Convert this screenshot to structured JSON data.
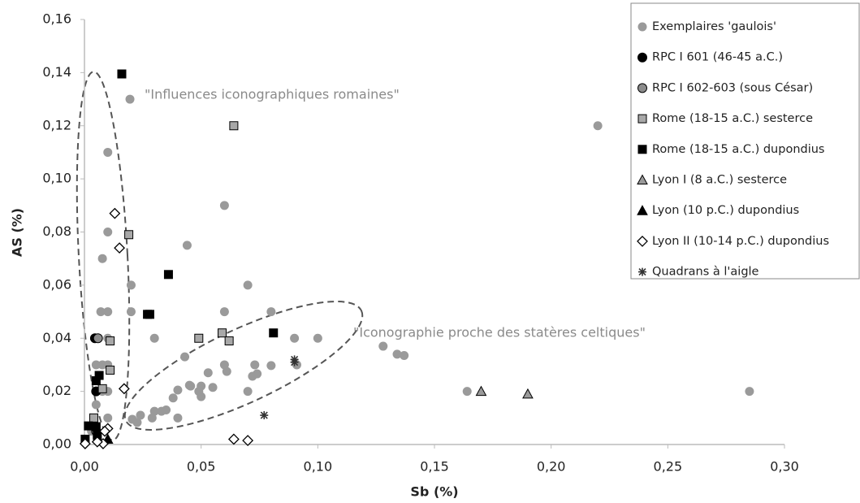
{
  "chart_data": {
    "type": "scatter",
    "x_label": "Sb (%)",
    "y_label": "AS (%)",
    "xlim": [
      0,
      0.3
    ],
    "ylim": [
      0,
      0.16
    ],
    "xticks": [
      {
        "value": 0,
        "label": "0,00"
      },
      {
        "value": 0.05,
        "label": "0,05"
      },
      {
        "value": 0.1,
        "label": "0,10"
      },
      {
        "value": 0.15,
        "label": "0,15"
      },
      {
        "value": 0.2,
        "label": "0,20"
      },
      {
        "value": 0.25,
        "label": "0,25"
      },
      {
        "value": 0.3,
        "label": "0,30"
      }
    ],
    "yticks": [
      {
        "value": 0,
        "label": "0,00"
      },
      {
        "value": 0.02,
        "label": "0,02"
      },
      {
        "value": 0.04,
        "label": "0,04"
      },
      {
        "value": 0.06,
        "label": "0,06"
      },
      {
        "value": 0.08,
        "label": "0,08"
      },
      {
        "value": 0.1,
        "label": "0,10"
      },
      {
        "value": 0.12,
        "label": "0,12"
      },
      {
        "value": 0.14,
        "label": "0,14"
      },
      {
        "value": 0.16,
        "label": "0,16"
      }
    ],
    "grid": false,
    "legend": "right",
    "annotations": [
      "\"Influences iconographiques romaines\"",
      "\"Iconographie proche des statères celtiques\""
    ],
    "series": [
      {
        "name": "Exemplaires 'gaulois'",
        "marker": "circle",
        "color": "#9a9a9a",
        "stroke": "none",
        "x": [
          0.0195,
          0.01,
          0.01,
          0.0077,
          0.06,
          0.044,
          0.02,
          0.01,
          0.007,
          0.02,
          0.07,
          0.06,
          0.08,
          0.03,
          0.09,
          0.1,
          0.128,
          0.134,
          0.137,
          0.22,
          0.164,
          0.285,
          0.043,
          0.053,
          0.06,
          0.061,
          0.073,
          0.072,
          0.074,
          0.08,
          0.091,
          0.05,
          0.049,
          0.05,
          0.055,
          0.045,
          0.0455,
          0.04,
          0.038,
          0.03,
          0.029,
          0.033,
          0.035,
          0.024,
          0.0205,
          0.0226,
          0.04,
          0.07,
          0.005,
          0.0077,
          0.01,
          0.01,
          0.01,
          0.0077,
          0.005,
          0.01,
          0.005,
          0.003,
          0.0055
        ],
        "values": [
          0.13,
          0.11,
          0.08,
          0.07,
          0.09,
          0.075,
          0.06,
          0.05,
          0.05,
          0.05,
          0.06,
          0.05,
          0.05,
          0.04,
          0.04,
          0.04,
          0.037,
          0.034,
          0.0335,
          0.12,
          0.02,
          0.02,
          0.033,
          0.027,
          0.03,
          0.0275,
          0.03,
          0.0257,
          0.0266,
          0.0297,
          0.03,
          0.022,
          0.02,
          0.018,
          0.0215,
          0.0223,
          0.022,
          0.0205,
          0.0175,
          0.0125,
          0.01,
          0.0125,
          0.013,
          0.011,
          0.0095,
          0.0083,
          0.01,
          0.02,
          0.03,
          0.03,
          0.03,
          0.02,
          0.01,
          0.02,
          0.015,
          0.04,
          0.04,
          0.005,
          0.003
        ]
      },
      {
        "name": "RPC I 601 (46-45 a.C.)",
        "marker": "circle",
        "color": "#000000",
        "stroke": "#000000",
        "x": [
          0.005,
          0.0045
        ],
        "values": [
          0.02,
          0.04
        ]
      },
      {
        "name": "RPC I 602-603 (sous César)",
        "marker": "circle",
        "color": "#8c8c8c",
        "stroke": "#000000",
        "x": [
          0.0058,
          0.005
        ],
        "values": [
          0.04,
          0.005
        ]
      },
      {
        "name": "Rome (18-15 a.C.) sesterce",
        "marker": "square",
        "color": "#a8a8a8",
        "stroke": "#000000",
        "x": [
          0.064,
          0.019,
          0.049,
          0.059,
          0.062,
          0.011,
          0.011,
          0.0077,
          0.004
        ],
        "values": [
          0.12,
          0.079,
          0.04,
          0.042,
          0.039,
          0.039,
          0.028,
          0.021,
          0.01
        ]
      },
      {
        "name": "Rome (18-15 a.C.) dupondius",
        "marker": "square",
        "color": "#000000",
        "stroke": "#000000",
        "x": [
          0.016,
          0.036,
          0.027,
          0.028,
          0.081,
          0.0063,
          0.005,
          0.0017,
          0.005,
          0.0003,
          0.0055
        ],
        "values": [
          0.1395,
          0.064,
          0.049,
          0.049,
          0.042,
          0.026,
          0.024,
          0.007,
          0.0067,
          0.002,
          0.0034
        ]
      },
      {
        "name": "Lyon I (8 a.C.) sesterce",
        "marker": "triangle",
        "color": "#9a9a9a",
        "stroke": "#000000",
        "x": [
          0.17,
          0.19
        ],
        "values": [
          0.02,
          0.019
        ]
      },
      {
        "name": "Lyon (10 p.C.) dupondius",
        "marker": "triangle",
        "color": "#000000",
        "stroke": "#000000",
        "x": [
          0.01
        ],
        "values": [
          0.002
        ]
      },
      {
        "name": "Lyon II (10-14 p.C.) dupondius",
        "marker": "diamond",
        "color": "#ffffff",
        "stroke": "#000000",
        "x": [
          0.013,
          0.015,
          0.017,
          0.064,
          0.07,
          0.0003,
          0.008,
          0.01,
          0.0087,
          0.0055
        ],
        "values": [
          0.087,
          0.074,
          0.021,
          0.002,
          0.0015,
          0.0003,
          0.0003,
          0.006,
          0.005,
          0.001
        ]
      },
      {
        "name": "Quadrans à l'aigle",
        "marker": "asterisk",
        "color": "#333333",
        "stroke": "#333333",
        "x": [
          0.077,
          0.09,
          0.09
        ],
        "values": [
          0.011,
          0.032,
          0.031
        ]
      }
    ]
  }
}
